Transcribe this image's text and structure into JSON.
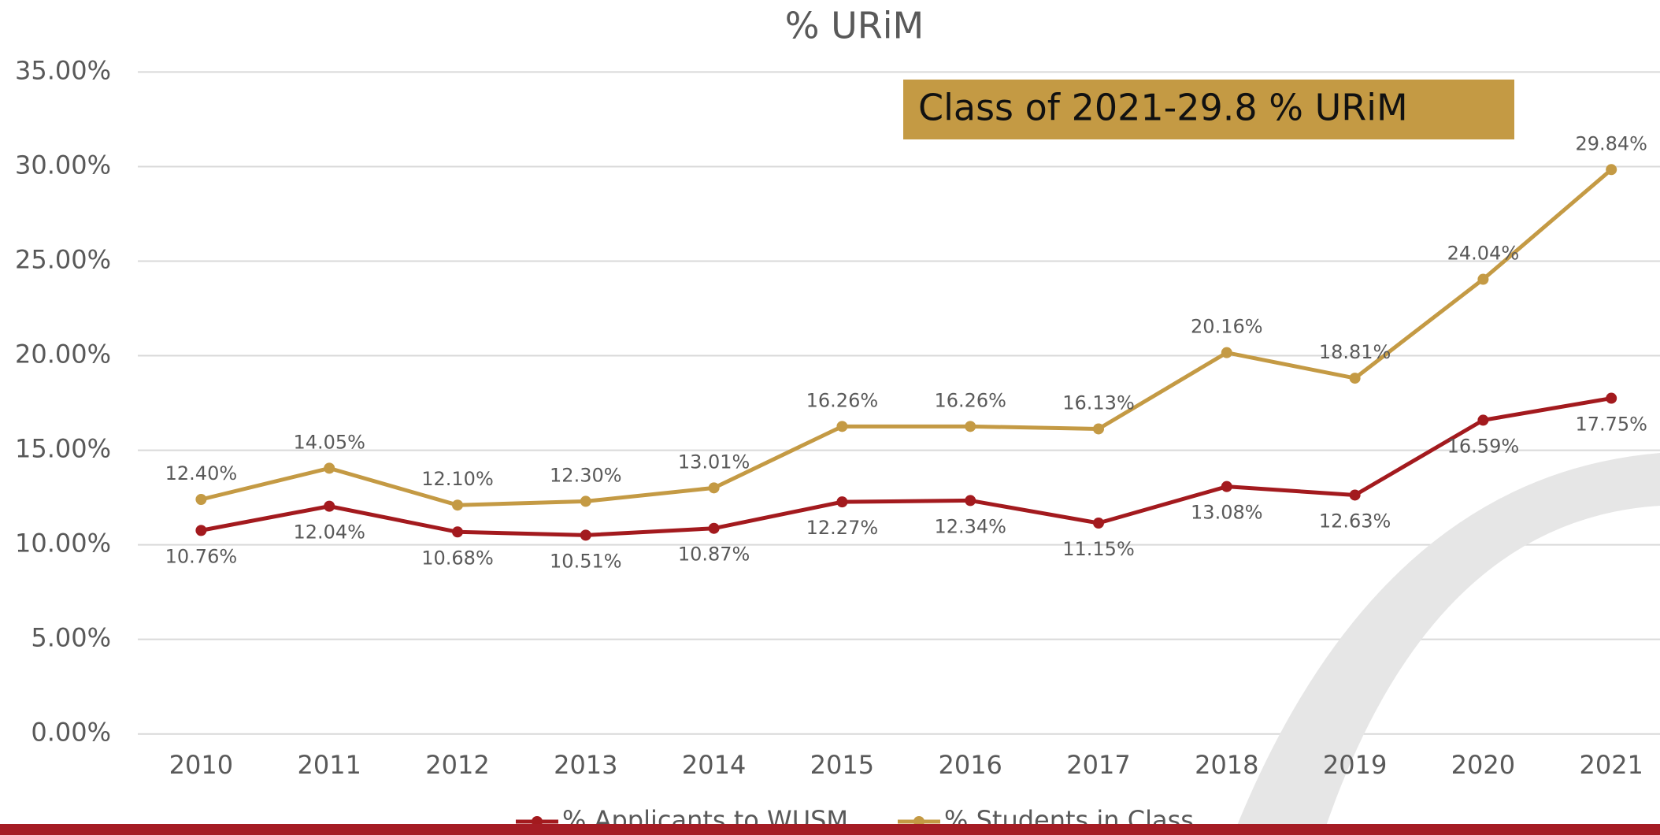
{
  "chart_data": {
    "type": "line",
    "title": "% URiM",
    "categories": [
      "2010",
      "2011",
      "2012",
      "2013",
      "2014",
      "2015",
      "2016",
      "2017",
      "2018",
      "2019",
      "2020",
      "2021"
    ],
    "series": [
      {
        "name": "% Applicants to WUSM",
        "color": "#a31a1e",
        "values": [
          10.76,
          12.04,
          10.68,
          10.51,
          10.87,
          12.27,
          12.34,
          11.15,
          13.08,
          12.63,
          16.59,
          17.75
        ],
        "value_labels": [
          "10.76%",
          "12.04%",
          "10.68%",
          "10.51%",
          "10.87%",
          "12.27%",
          "12.34%",
          "11.15%",
          "13.08%",
          "12.63%",
          "16.59%",
          "17.75%"
        ]
      },
      {
        "name": "% Students in Class",
        "color": "#c49a44",
        "values": [
          12.4,
          14.05,
          12.1,
          12.3,
          13.01,
          16.26,
          16.26,
          16.13,
          20.16,
          18.81,
          24.04,
          29.84
        ],
        "value_labels": [
          "12.40%",
          "14.05%",
          "12.10%",
          "12.30%",
          "13.01%",
          "16.26%",
          "16.26%",
          "16.13%",
          "20.16%",
          "18.81%",
          "24.04%",
          "29.84%"
        ]
      }
    ],
    "ylim": [
      0,
      35
    ],
    "yticks": [
      {
        "value": 0,
        "label": "0.00%"
      },
      {
        "value": 5,
        "label": "5.00%"
      },
      {
        "value": 10,
        "label": "10.00%"
      },
      {
        "value": 15,
        "label": "15.00%"
      },
      {
        "value": 20,
        "label": "20.00%"
      },
      {
        "value": 25,
        "label": "25.00%"
      },
      {
        "value": 30,
        "label": "30.00%"
      },
      {
        "value": 35,
        "label": "35.00%"
      }
    ],
    "grid": true,
    "legend": "bottom",
    "annotation": {
      "text": "Class of 2021-29.8 % URiM",
      "color": "#c49a44"
    }
  }
}
